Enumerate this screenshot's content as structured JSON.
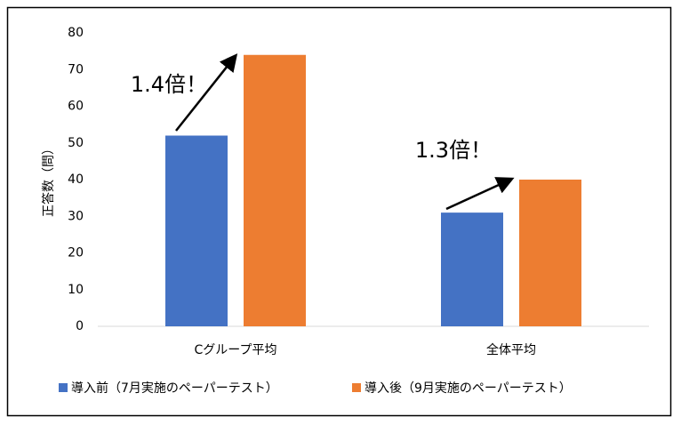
{
  "chart_data": {
    "type": "bar",
    "y_label": "正答数（問）",
    "categories": [
      "Cグループ平均",
      "全体平均"
    ],
    "series": [
      {
        "name": "導入前（7月実施のペーパーテスト）",
        "color": "#4472c4",
        "values": [
          52,
          31
        ]
      },
      {
        "name": "導入後（9月実施のペーパーテスト）",
        "color": "#ed7d31",
        "values": [
          74,
          40
        ]
      }
    ],
    "annotations": [
      "1.4倍！",
      "1.3倍！"
    ],
    "ylim": [
      0,
      80
    ],
    "yticks": [
      0,
      10,
      20,
      30,
      40,
      50,
      60,
      70,
      80
    ],
    "grid": false,
    "legend": "bottom"
  }
}
